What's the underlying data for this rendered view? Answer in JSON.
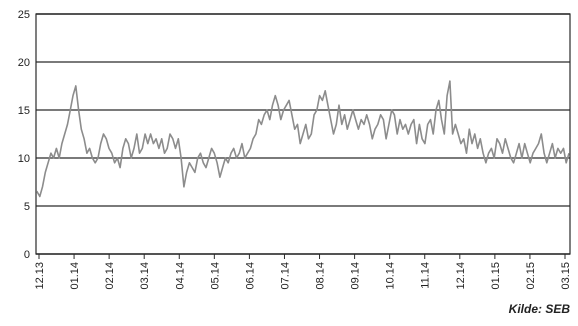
{
  "chart_data": {
    "type": "line",
    "title": "",
    "xlabel": "",
    "ylabel": "",
    "ylim": [
      0,
      25
    ],
    "yticks": [
      "0",
      "5",
      "10",
      "15",
      "20",
      "25"
    ],
    "xticks": [
      "12.13",
      "01.14",
      "02.14",
      "03.14",
      "04.14",
      "05.14",
      "06.14",
      "07.14",
      "08.14",
      "09.14",
      "10.14",
      "11.14",
      "12.14",
      "01.15",
      "02.15",
      "03.15"
    ],
    "grid": "horizontal",
    "legend": "none",
    "line_color": "#8c8c8c",
    "series": [
      {
        "values": [
          6.5,
          6,
          7,
          8.5,
          9.5,
          10.5,
          10,
          11,
          10,
          11.5,
          12.5,
          13.5,
          15,
          16.5,
          17.5,
          15,
          13,
          12,
          10.5,
          11,
          10,
          9.5,
          10,
          11.5,
          12.5,
          12,
          11,
          10.5,
          9.5,
          10,
          9,
          11,
          12,
          11.5,
          10,
          11,
          12.5,
          10.5,
          11,
          12.5,
          11.5,
          12.5,
          11.5,
          12,
          11,
          12,
          10.5,
          11,
          12.5,
          12,
          11,
          12,
          10,
          7,
          8.5,
          9.5,
          9,
          8.5,
          10,
          10.5,
          9.5,
          9,
          10,
          11,
          10.5,
          9.5,
          8,
          9,
          10,
          9.5,
          10.5,
          11,
          10,
          10.5,
          11.5,
          10,
          10.5,
          11,
          12,
          12.5,
          14,
          13.5,
          14.5,
          15,
          14,
          15.5,
          16.5,
          15.5,
          14,
          15,
          15.5,
          16,
          14.5,
          13,
          13.5,
          11.5,
          12.5,
          13.5,
          12,
          12.5,
          14.5,
          15,
          16.5,
          16,
          17,
          15.5,
          14,
          12.5,
          13.5,
          15.5,
          13.5,
          14.5,
          13,
          14,
          15,
          14,
          13,
          14,
          13.5,
          14.5,
          13.5,
          12,
          13,
          13.5,
          14.5,
          14,
          12,
          13.5,
          15,
          14.5,
          12.5,
          14,
          13,
          13.5,
          12.5,
          13.5,
          14,
          11.5,
          13.5,
          12,
          11.5,
          13.5,
          14,
          12.5,
          15,
          16,
          14,
          12.5,
          16.5,
          18,
          12.5,
          13.5,
          12.5,
          11.5,
          12,
          10.5,
          13,
          11.5,
          12.5,
          11,
          12,
          10.5,
          9.5,
          10.5,
          11,
          10,
          12,
          11.5,
          10.5,
          12,
          11,
          10,
          9.5,
          10.5,
          11.5,
          10,
          11.5,
          10.5,
          9.5,
          10.5,
          11,
          11.5,
          12.5,
          10.5,
          9.5,
          10.5,
          11.5,
          10,
          11,
          10.5,
          11,
          9.5,
          10.5
        ]
      }
    ]
  },
  "source_label": "Kilde: SEB"
}
